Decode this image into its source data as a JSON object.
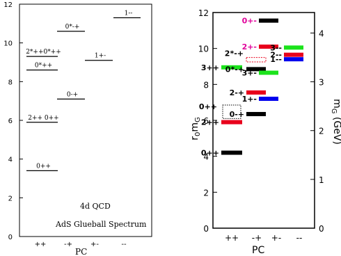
{
  "chart_data": [
    {
      "type": "scatter",
      "title": "",
      "xlabel": "PC",
      "ylabel": "",
      "ylim": [
        0,
        12
      ],
      "yticks": [
        "0",
        "2",
        "4",
        "6",
        "8",
        "10",
        "12"
      ],
      "categories": [
        "++",
        "-+",
        "+-",
        "--"
      ],
      "annotations": [
        "4d  QCD",
        "AdS Glueball Spectrum"
      ],
      "levels": [
        {
          "pc": "++",
          "label": "0++",
          "y": 3.4,
          "color": "#000000"
        },
        {
          "pc": "++",
          "label": "2++  0++",
          "y": 5.9,
          "color": "#000000"
        },
        {
          "pc": "++",
          "label": "0*++",
          "y": 8.6,
          "color": "#000000"
        },
        {
          "pc": "++",
          "label": "2*++0*++",
          "y": 9.3,
          "color": "#000000"
        },
        {
          "pc": "-+",
          "label": "0-+",
          "y": 7.1,
          "color": "#000000"
        },
        {
          "pc": "-+",
          "label": "0*-+",
          "y": 10.6,
          "color": "#000000"
        },
        {
          "pc": "+-",
          "label": "1+-",
          "y": 9.1,
          "color": "#000000"
        },
        {
          "pc": "--",
          "label": "1--",
          "y": 11.3,
          "color": "#000000"
        }
      ]
    },
    {
      "type": "scatter",
      "title": "",
      "xlabel": "PC",
      "ylabel": "r0mG",
      "y2label": "mG (GeV)",
      "ylim": [
        0,
        12
      ],
      "yticks": [
        "0",
        "2",
        "4",
        "6",
        "8",
        "10",
        "12"
      ],
      "y2lim": [
        0,
        4.42
      ],
      "y2ticks": [
        "0",
        "1",
        "2",
        "3",
        "4"
      ],
      "categories": [
        "++",
        "-+",
        "+-",
        "--"
      ],
      "levels": [
        {
          "pc": "++",
          "label": "0++",
          "y": 4.2,
          "color": "#000000",
          "style": "solid"
        },
        {
          "pc": "++",
          "label": "2++",
          "y": 5.9,
          "color": "#e8001c",
          "style": "solid"
        },
        {
          "pc": "++",
          "label": "0++",
          "y": 6.85,
          "color": "#000000",
          "style": "dotted-box",
          "y_low": 6.1
        },
        {
          "pc": "++",
          "label": "3++",
          "y": 8.95,
          "color": "#1be31b",
          "style": "solid"
        },
        {
          "pc": "-+",
          "label": "0-+",
          "y": 6.35,
          "color": "#000000",
          "style": "solid"
        },
        {
          "pc": "-+",
          "label": "2-+",
          "y": 7.55,
          "color": "#e8001c",
          "style": "solid"
        },
        {
          "pc": "-+",
          "label": "0*-+",
          "y": 8.85,
          "color": "#000000",
          "style": "solid"
        },
        {
          "pc": "-+",
          "label": "2*-+",
          "y": 9.5,
          "color": "#e8001c",
          "style": "dashed-box",
          "y_low": 9.25
        },
        {
          "pc": "+-",
          "label": "1+-",
          "y": 7.2,
          "color": "#0000ee",
          "style": "solid"
        },
        {
          "pc": "+-",
          "label": "3+-",
          "y": 8.65,
          "color": "#1be31b",
          "style": "solid"
        },
        {
          "pc": "+-",
          "label": "2+-",
          "y": 10.1,
          "color": "#e8001c",
          "style": "solid"
        },
        {
          "pc": "+-",
          "label": "0+-",
          "y": 11.55,
          "color": "#000000",
          "style": "solid"
        },
        {
          "pc": "--",
          "label": "1--",
          "y": 9.4,
          "color": "#0000ee",
          "style": "solid"
        },
        {
          "pc": "--",
          "label": "2--",
          "y": 9.65,
          "color": "#e8001c",
          "style": "solid"
        },
        {
          "pc": "--",
          "label": "3--",
          "y": 10.05,
          "color": "#1be31b",
          "style": "solid"
        }
      ]
    }
  ]
}
